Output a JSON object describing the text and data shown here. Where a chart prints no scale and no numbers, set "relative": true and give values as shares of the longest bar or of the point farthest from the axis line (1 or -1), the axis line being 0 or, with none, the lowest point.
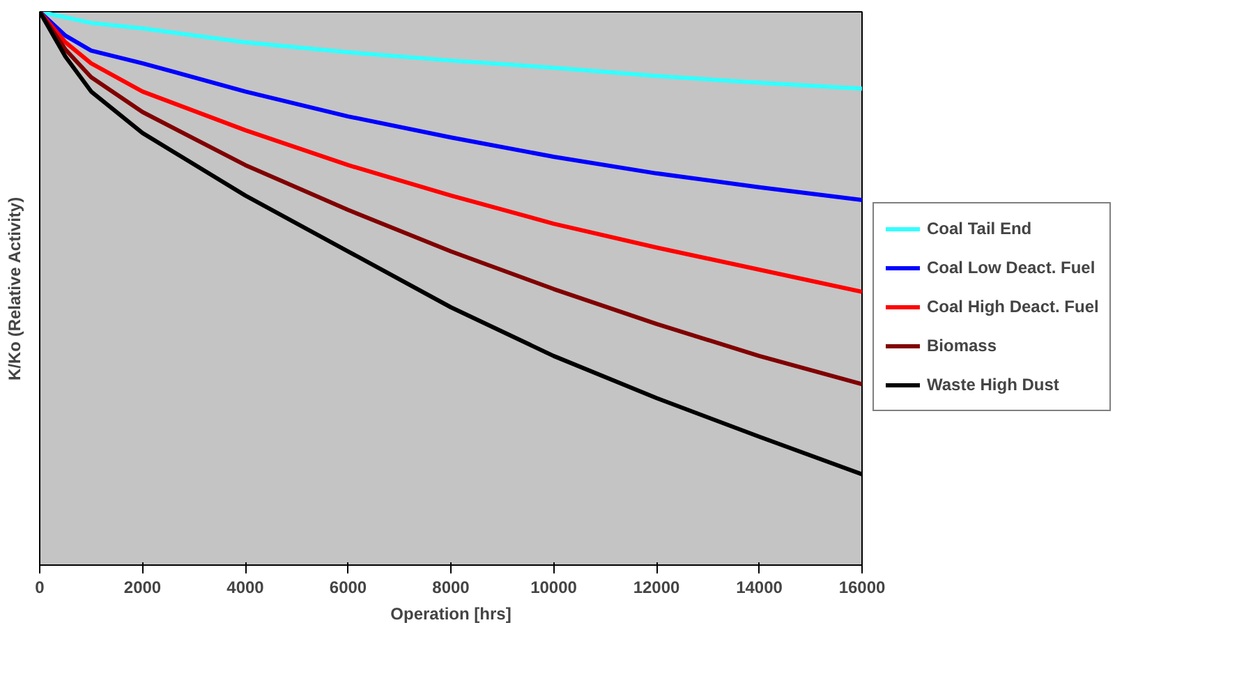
{
  "chart_data": {
    "type": "line",
    "xlabel": "Operation [hrs]",
    "ylabel": "K/Ko (Relative Activity)",
    "relative": true,
    "x": [
      0,
      500,
      1000,
      2000,
      4000,
      6000,
      8000,
      10000,
      12000,
      14000,
      16000
    ],
    "xlim": [
      0,
      16000
    ],
    "xticks": [
      0,
      2000,
      4000,
      6000,
      8000,
      10000,
      12000,
      14000,
      16000
    ],
    "legend": "right",
    "grid": false,
    "series": [
      {
        "name": "Coal Tail End",
        "color": "#33ffff",
        "values": [
          1,
          0.99,
          0.98,
          0.97,
          0.945,
          0.927,
          0.912,
          0.899,
          0.884,
          0.872,
          0.861
        ]
      },
      {
        "name": "Coal Low Deact. Fuel",
        "color": "#0000ff",
        "values": [
          1,
          0.957,
          0.93,
          0.907,
          0.856,
          0.811,
          0.773,
          0.738,
          0.708,
          0.683,
          0.66
        ]
      },
      {
        "name": "Coal High Deact. Fuel",
        "color": "#ff0000",
        "values": [
          1,
          0.945,
          0.907,
          0.856,
          0.786,
          0.723,
          0.668,
          0.617,
          0.574,
          0.534,
          0.494
        ]
      },
      {
        "name": "Biomass",
        "color": "#800000",
        "values": [
          1,
          0.932,
          0.882,
          0.819,
          0.723,
          0.642,
          0.567,
          0.499,
          0.436,
          0.378,
          0.327
        ]
      },
      {
        "name": "Waste High Dust",
        "color": "#000000",
        "values": [
          1,
          0.919,
          0.856,
          0.781,
          0.668,
          0.567,
          0.466,
          0.378,
          0.302,
          0.232,
          0.164
        ]
      }
    ]
  }
}
